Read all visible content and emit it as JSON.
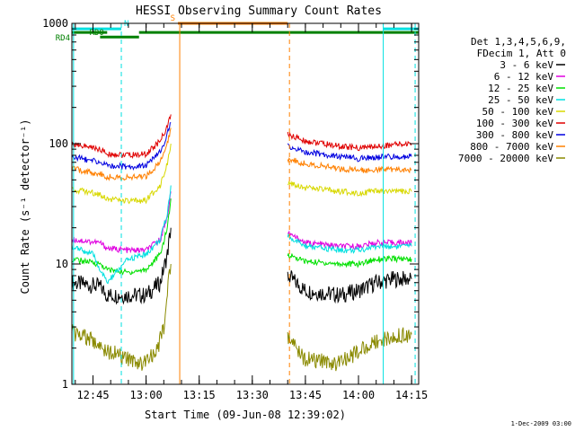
{
  "chart_data": {
    "type": "line",
    "title": "HESSI Observing Summary Count Rates",
    "xlabel": "Start Time (09-Jun-08 12:39:02)",
    "ylabel": "Count Rate (s⁻¹ detector⁻¹)",
    "y_scale": "log",
    "ylim": [
      1,
      1000
    ],
    "xlim": [
      "12:39:02",
      "14:17:00"
    ],
    "x_ticks": [
      "12:45",
      "13:00",
      "13:15",
      "13:30",
      "13:45",
      "14:00",
      "14:15"
    ],
    "y_ticks": [
      "1",
      "10",
      "100",
      "1000"
    ],
    "legend_position": "right",
    "legend_header": [
      "Det 1,3,4,5,6,9,",
      "FDecim 1, Att 0"
    ],
    "series": [
      {
        "name": "3 - 6 keV",
        "color": "#000000",
        "points": [
          [
            "12:39",
            7
          ],
          [
            "12:47",
            6.5
          ],
          [
            "12:49",
            5.5
          ],
          [
            "12:55",
            5.5
          ],
          [
            "13:00",
            5.5
          ],
          [
            "13:04",
            7
          ],
          [
            "13:06",
            12
          ],
          [
            "13:07",
            20
          ],
          [
            "13:40",
            8
          ],
          [
            "13:45",
            6
          ],
          [
            "13:55",
            5.5
          ],
          [
            "14:00",
            6
          ],
          [
            "14:05",
            7
          ],
          [
            "14:10",
            7.5
          ],
          [
            "14:15",
            7.5
          ]
        ]
      },
      {
        "name": "6 - 12 keV",
        "color": "#e000e0",
        "points": [
          [
            "12:39",
            16
          ],
          [
            "12:47",
            15
          ],
          [
            "12:49",
            13.5
          ],
          [
            "12:55",
            13
          ],
          [
            "13:00",
            13
          ],
          [
            "13:04",
            16
          ],
          [
            "13:06",
            25
          ],
          [
            "13:07",
            40
          ],
          [
            "13:40",
            18
          ],
          [
            "13:45",
            15
          ],
          [
            "13:55",
            14
          ],
          [
            "14:00",
            14
          ],
          [
            "14:05",
            15
          ],
          [
            "14:10",
            15
          ],
          [
            "14:15",
            15
          ]
        ]
      },
      {
        "name": "12 - 25 keV",
        "color": "#00e000",
        "points": [
          [
            "12:39",
            11
          ],
          [
            "12:47",
            10
          ],
          [
            "12:49",
            9
          ],
          [
            "12:55",
            8.5
          ],
          [
            "13:00",
            9
          ],
          [
            "13:04",
            12
          ],
          [
            "13:06",
            20
          ],
          [
            "13:07",
            35
          ],
          [
            "13:40",
            12
          ],
          [
            "13:45",
            10.5
          ],
          [
            "13:55",
            10
          ],
          [
            "14:00",
            10
          ],
          [
            "14:05",
            11
          ],
          [
            "14:10",
            11
          ],
          [
            "14:15",
            11
          ]
        ]
      },
      {
        "name": "25 - 50 keV",
        "color": "#00e0e0",
        "points": [
          [
            "12:39",
            14
          ],
          [
            "12:45",
            12
          ],
          [
            "12:47",
            9
          ],
          [
            "12:49",
            7
          ],
          [
            "12:55",
            11
          ],
          [
            "13:00",
            12
          ],
          [
            "13:04",
            16
          ],
          [
            "13:06",
            26
          ],
          [
            "13:07",
            45
          ],
          [
            "13:40",
            17
          ],
          [
            "13:45",
            14
          ],
          [
            "13:55",
            13
          ],
          [
            "14:00",
            13
          ],
          [
            "14:05",
            14
          ],
          [
            "14:10",
            14
          ],
          [
            "14:15",
            14
          ]
        ]
      },
      {
        "name": "50 - 100 keV",
        "color": "#d8d800",
        "points": [
          [
            "12:39",
            42
          ],
          [
            "12:47",
            38
          ],
          [
            "12:49",
            35
          ],
          [
            "12:55",
            33
          ],
          [
            "13:00",
            34
          ],
          [
            "13:04",
            45
          ],
          [
            "13:06",
            70
          ],
          [
            "13:07",
            100
          ],
          [
            "13:40",
            48
          ],
          [
            "13:45",
            43
          ],
          [
            "13:55",
            40
          ],
          [
            "14:00",
            39
          ],
          [
            "14:05",
            40
          ],
          [
            "14:10",
            40
          ],
          [
            "14:15",
            40
          ]
        ]
      },
      {
        "name": "100 - 300 keV",
        "color": "#e00000",
        "points": [
          [
            "12:39",
            100
          ],
          [
            "12:47",
            90
          ],
          [
            "12:49",
            82
          ],
          [
            "12:55",
            80
          ],
          [
            "13:00",
            82
          ],
          [
            "13:04",
            105
          ],
          [
            "13:06",
            140
          ],
          [
            "13:07",
            175
          ],
          [
            "13:40",
            120
          ],
          [
            "13:45",
            105
          ],
          [
            "13:55",
            95
          ],
          [
            "14:00",
            92
          ],
          [
            "14:05",
            95
          ],
          [
            "14:10",
            98
          ],
          [
            "14:15",
            100
          ]
        ]
      },
      {
        "name": "300 - 800 keV",
        "color": "#0000e0",
        "points": [
          [
            "12:39",
            78
          ],
          [
            "12:47",
            70
          ],
          [
            "12:49",
            66
          ],
          [
            "12:55",
            64
          ],
          [
            "13:00",
            66
          ],
          [
            "13:04",
            85
          ],
          [
            "13:06",
            120
          ],
          [
            "13:07",
            150
          ],
          [
            "13:40",
            95
          ],
          [
            "13:45",
            85
          ],
          [
            "13:55",
            78
          ],
          [
            "14:00",
            75
          ],
          [
            "14:05",
            77
          ],
          [
            "14:10",
            78
          ],
          [
            "14:15",
            78
          ]
        ]
      },
      {
        "name": "800 - 7000 keV",
        "color": "#ff8000",
        "points": [
          [
            "12:39",
            62
          ],
          [
            "12:47",
            56
          ],
          [
            "12:49",
            53
          ],
          [
            "12:55",
            52
          ],
          [
            "13:00",
            54
          ],
          [
            "13:04",
            70
          ],
          [
            "13:06",
            100
          ],
          [
            "13:07",
            135
          ],
          [
            "13:40",
            75
          ],
          [
            "13:45",
            68
          ],
          [
            "13:55",
            62
          ],
          [
            "14:00",
            60
          ],
          [
            "14:05",
            61
          ],
          [
            "14:10",
            61
          ],
          [
            "14:15",
            61
          ]
        ]
      },
      {
        "name": "7000 - 20000 keV",
        "color": "#8a8a00",
        "points": [
          [
            "12:39",
            2.7
          ],
          [
            "12:45",
            2.3
          ],
          [
            "12:47",
            2.0
          ],
          [
            "12:49",
            1.9
          ],
          [
            "12:55",
            1.6
          ],
          [
            "13:00",
            1.5
          ],
          [
            "13:03",
            1.9
          ],
          [
            "13:05",
            3
          ],
          [
            "13:06",
            6
          ],
          [
            "13:07",
            10
          ],
          [
            "13:40",
            2.5
          ],
          [
            "13:45",
            1.6
          ],
          [
            "13:55",
            1.5
          ],
          [
            "14:00",
            1.9
          ],
          [
            "14:05",
            2.3
          ],
          [
            "14:10",
            2.5
          ],
          [
            "14:15",
            2.6
          ]
        ]
      }
    ],
    "gaps": [
      [
        "13:07",
        "13:39"
      ]
    ],
    "verticals": [
      {
        "time": "12:39:30",
        "color": "#00e0e0",
        "style": "solid"
      },
      {
        "time": "12:53:00",
        "color": "#00e0e0",
        "style": "dashed"
      },
      {
        "time": "13:09:30",
        "color": "#ff8000",
        "style": "solid"
      },
      {
        "time": "13:40:30",
        "color": "#ff8000",
        "style": "dashed"
      },
      {
        "time": "14:07:00",
        "color": "#00e0e0",
        "style": "solid"
      },
      {
        "time": "14:16:00",
        "color": "#00e0e0",
        "style": "dashed"
      }
    ],
    "flag_bars": [
      {
        "label": "N",
        "color": "#00e0e0",
        "segments": [
          [
            "12:39",
            "12:53"
          ],
          [
            "14:07",
            "14:17"
          ]
        ],
        "y": 900
      },
      {
        "label": "S",
        "color": "#ff8000",
        "segments": [
          [
            "13:09",
            "13:40"
          ]
        ],
        "y": 1000
      },
      {
        "label": "RD0",
        "color": "#008000",
        "segments": [
          [
            "12:39",
            "12:49"
          ],
          [
            "12:58",
            "14:17"
          ]
        ],
        "y": 840
      },
      {
        "label": "RD4",
        "color": "#008000",
        "segments": [
          [
            "12:47",
            "12:58"
          ]
        ],
        "y": 770
      }
    ],
    "footer_date": "1-Dec-2009 03:00"
  }
}
